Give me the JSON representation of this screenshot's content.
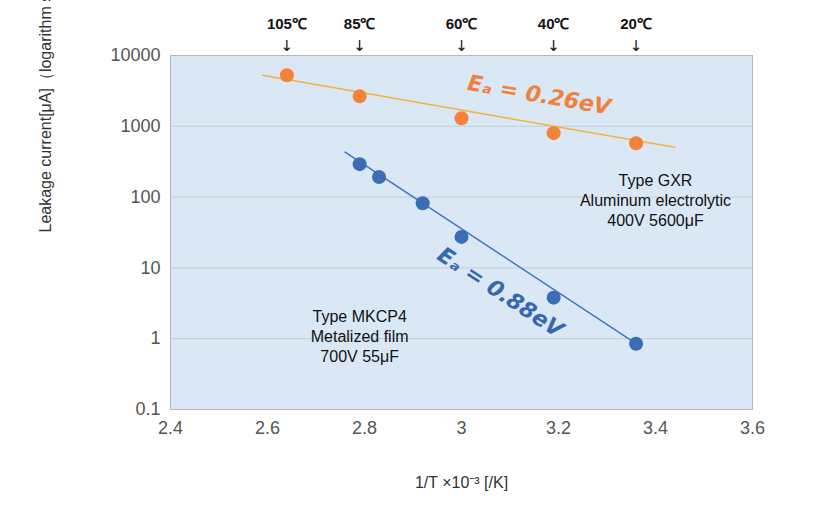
{
  "chart_data": {
    "type": "scatter",
    "x_label": "1/T ×10⁻³ [/K]",
    "y_label": "Leakage current[μA]（logarithm scale ）",
    "log": "y",
    "grid": "y",
    "xlim": [
      2.4,
      3.6
    ],
    "xticks": [
      2.4,
      2.6,
      2.8,
      3,
      3.2,
      3.4,
      3.6
    ],
    "ylim": [
      0.1,
      10000
    ],
    "yticks": [
      0.1,
      1,
      10,
      100,
      1000,
      10000
    ],
    "series": [
      {
        "type": "line",
        "color": "#F5B13D",
        "line_style": "solid",
        "x": [
          2.59,
          3.44
        ],
        "values": [
          5250,
          505
        ]
      },
      {
        "type": "scatter",
        "color": "#F5823A",
        "marker": "circle",
        "x": [
          2.64,
          2.79,
          3.0,
          3.19,
          3.36
        ],
        "values": [
          5250,
          2650,
          1300,
          800,
          575
        ]
      },
      {
        "type": "line",
        "color": "#4472C4",
        "line_style": "solid",
        "x": [
          2.76,
          3.36
        ],
        "values": [
          432,
          0.85
        ]
      },
      {
        "type": "scatter",
        "color": "#3A6DB5",
        "marker": "circle",
        "x": [
          2.79,
          2.83,
          2.92,
          3.0,
          3.19,
          3.36
        ],
        "values": [
          292,
          192,
          82,
          27.4,
          3.8,
          0.85
        ]
      }
    ],
    "fit_labels": [
      {
        "text": "Eₐ = 0.26eV",
        "x": 3.16,
        "y": 2740,
        "color": "#F0803C"
      },
      {
        "text": "Eₐ = 0.88eV",
        "x": 3.08,
        "y": 4.5,
        "color": "#3668B0"
      }
    ],
    "type_labels": [
      {
        "text": "Type GXR\nAluminum electrolytic\n400V 5600μF",
        "x": 3.4,
        "y": 91
      },
      {
        "text": "Type MKCP4\nMetalized film\n700V 55μF",
        "x": 2.79,
        "y": 1.1
      }
    ],
    "temperature_labels": [
      {
        "text": "105℃",
        "x": 2.64
      },
      {
        "text": "85℃",
        "x": 2.79
      },
      {
        "text": "60℃",
        "x": 3.0
      },
      {
        "text": "40℃",
        "x": 3.19
      },
      {
        "text": "20℃",
        "x": 3.36
      }
    ],
    "temperature_arrow": "↓"
  }
}
